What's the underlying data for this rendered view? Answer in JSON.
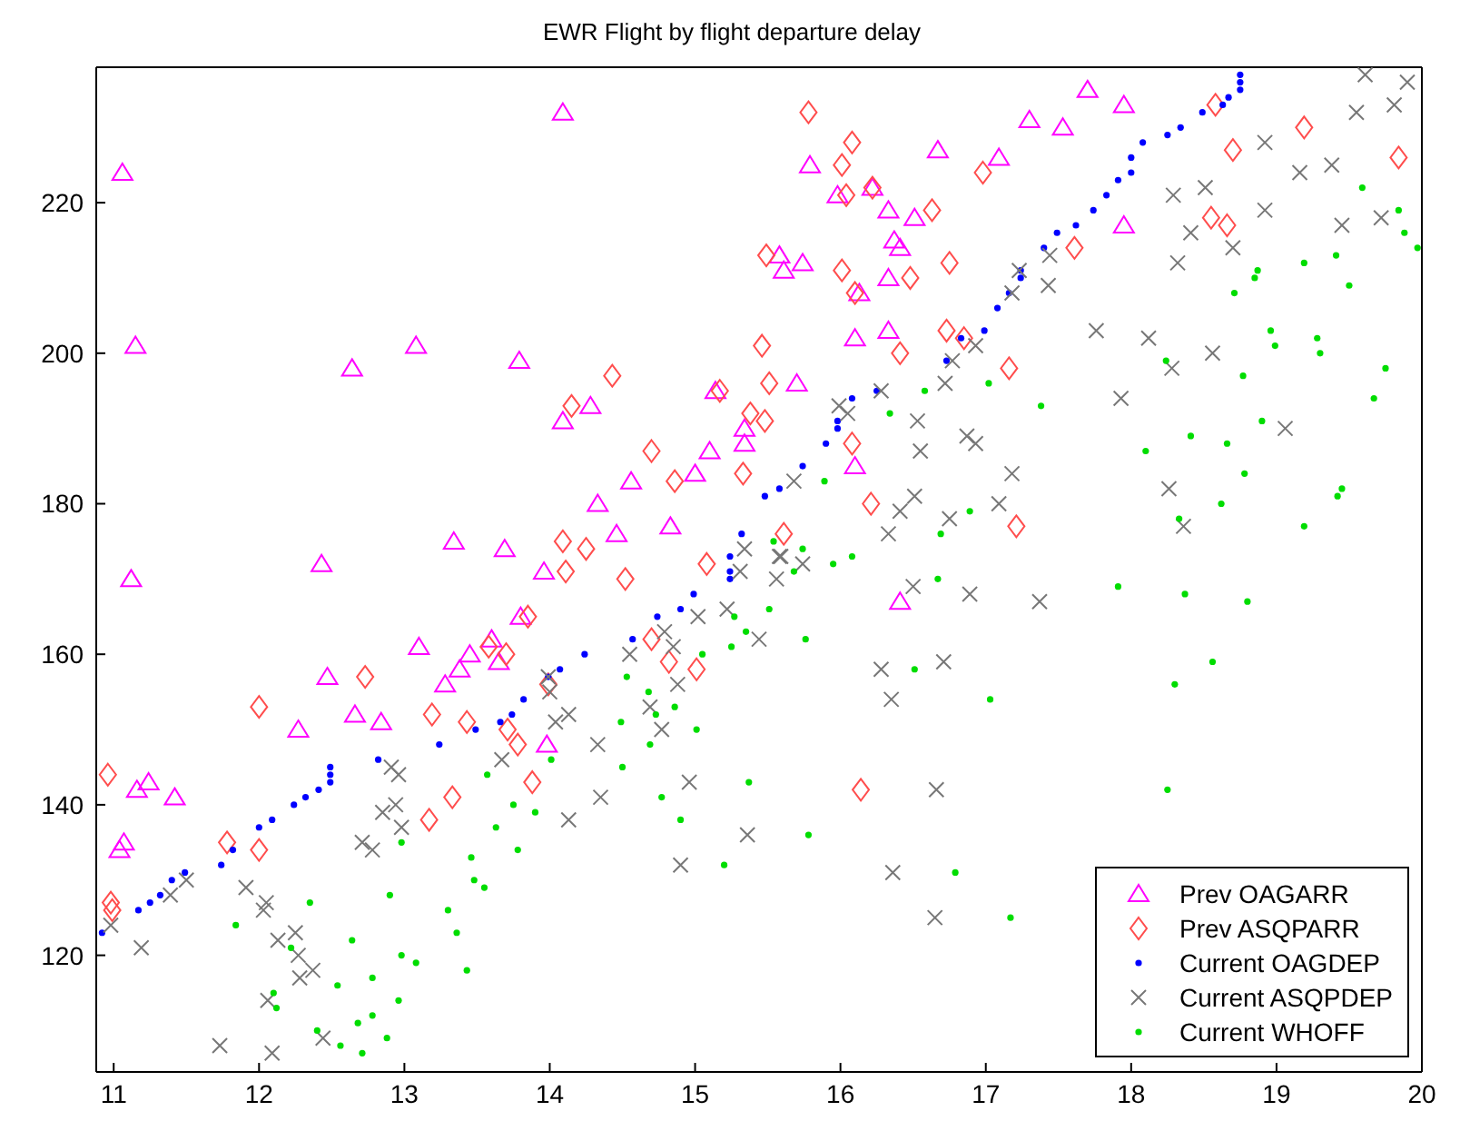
{
  "chart_data": {
    "type": "scatter",
    "title": "EWR Flight by flight departure delay",
    "xlim": [
      10.88,
      20
    ],
    "ylim": [
      104.5,
      238
    ],
    "xticks": [
      11,
      12,
      13,
      14,
      15,
      16,
      17,
      18,
      19,
      20
    ],
    "yticks": [
      120,
      140,
      160,
      180,
      200,
      220
    ],
    "legend": "bottom right",
    "series": [
      {
        "name": "Prev OAGARR",
        "color": "#ff00ff",
        "marker": "triangle",
        "x": [
          11.06,
          11.15,
          11.12,
          11.04,
          11.07,
          11.16,
          11.24,
          11.42,
          12.43,
          12.47,
          12.27,
          12.66,
          12.84,
          13.1,
          13.28,
          13.38,
          13.45,
          13.6,
          13.65,
          13.8,
          13.98,
          14.09,
          12.64,
          13.08,
          13.79,
          14.09,
          14.28,
          15.34,
          15.14,
          15.34,
          15.1,
          15.0,
          14.56,
          14.33,
          14.46,
          14.83,
          13.34,
          13.69,
          13.96,
          17.7,
          17.95,
          17.3,
          17.53,
          16.67,
          17.09,
          15.79,
          15.98,
          16.22,
          16.33,
          16.51,
          16.37,
          16.41,
          17.95,
          15.58,
          15.61,
          15.74,
          16.13,
          16.33,
          16.1,
          16.33,
          15.7,
          16.1,
          16.41
        ],
        "values": [
          224,
          201,
          170,
          134,
          135,
          142,
          143,
          141,
          172,
          157,
          150,
          152,
          151,
          161,
          156,
          158,
          160,
          162,
          159,
          165,
          148,
          232,
          198,
          201,
          199,
          191,
          193,
          190,
          195,
          188,
          187,
          184,
          183,
          180,
          176,
          177,
          175,
          174,
          171,
          235,
          233,
          231,
          230,
          227,
          226,
          225,
          221,
          222,
          219,
          218,
          215,
          214,
          217,
          213,
          211,
          212,
          208,
          210,
          202,
          203,
          196,
          185,
          167
        ]
      },
      {
        "name": "Prev ASQPARR",
        "color": "#ff4d4d",
        "marker": "diamond",
        "x": [
          10.96,
          10.98,
          10.99,
          11.78,
          12.0,
          12.0,
          12.73,
          13.19,
          13.43,
          13.7,
          13.58,
          13.71,
          13.78,
          13.85,
          13.88,
          13.33,
          13.17,
          13.99,
          14.11,
          14.52,
          14.7,
          14.82,
          15.01,
          15.08,
          14.25,
          14.43,
          14.15,
          14.7,
          14.86,
          15.33,
          14.09,
          15.17,
          15.78,
          16.08,
          16.01,
          16.22,
          16.04,
          16.98,
          16.63,
          16.75,
          16.48,
          16.01,
          16.1,
          15.49,
          15.46,
          15.51,
          16.41,
          16.73,
          16.85,
          17.16,
          15.38,
          15.48,
          16.08,
          16.21,
          15.61,
          17.21,
          18.58,
          19.19,
          18.7,
          19.84,
          17.61,
          18.55,
          18.66,
          16.14
        ],
        "values": [
          144,
          127,
          126,
          135,
          134,
          153,
          157,
          152,
          151,
          160,
          161,
          150,
          148,
          165,
          143,
          141,
          138,
          156,
          171,
          170,
          162,
          159,
          158,
          172,
          174,
          197,
          193,
          187,
          183,
          184,
          175,
          195,
          232,
          228,
          225,
          222,
          221,
          224,
          219,
          212,
          210,
          211,
          208,
          213,
          201,
          196,
          200,
          203,
          202,
          198,
          192,
          191,
          188,
          180,
          176,
          177,
          233,
          230,
          227,
          226,
          214,
          218,
          217,
          142
        ]
      },
      {
        "name": "Current OAGDEP",
        "color": "#0000ff",
        "marker": "circle",
        "x": [
          10.92,
          11.17,
          11.25,
          11.32,
          11.4,
          11.49,
          11.74,
          11.82,
          12.0,
          12.09,
          12.24,
          12.32,
          12.41,
          12.49,
          12.49,
          12.49,
          12.82,
          13.24,
          13.49,
          13.66,
          13.74,
          13.82,
          13.99,
          14.07,
          14.24,
          14.57,
          14.74,
          14.9,
          14.99,
          15.24,
          15.24,
          15.24,
          15.32,
          15.48,
          15.58,
          15.74,
          15.9,
          15.98,
          15.98,
          16.08,
          16.25,
          16.73,
          16.83,
          16.99,
          17.08,
          17.16,
          17.24,
          17.24,
          17.4,
          17.49,
          17.62,
          17.74,
          17.83,
          17.91,
          18.0,
          18.0,
          18.08,
          18.25,
          18.34,
          18.49,
          18.63,
          18.67,
          18.75,
          18.75,
          18.75
        ],
        "values": [
          123,
          126,
          127,
          128,
          130,
          131,
          132,
          134,
          137,
          138,
          140,
          141,
          142,
          143,
          144,
          145,
          146,
          148,
          150,
          151,
          152,
          154,
          157,
          158,
          160,
          162,
          165,
          166,
          168,
          170,
          171,
          173,
          176,
          181,
          182,
          185,
          188,
          190,
          191,
          194,
          195,
          199,
          202,
          203,
          206,
          208,
          210,
          211,
          214,
          216,
          217,
          219,
          221,
          223,
          224,
          226,
          228,
          229,
          230,
          232,
          233,
          234,
          235,
          236,
          237
        ]
      },
      {
        "name": "Current ASQPDEP",
        "color": "#777777",
        "marker": "cross",
        "x": [
          10.98,
          11.19,
          11.39,
          11.5,
          11.73,
          11.91,
          12.05,
          12.03,
          12.13,
          12.06,
          12.09,
          12.25,
          12.27,
          12.28,
          12.37,
          12.44,
          12.71,
          12.78,
          12.85,
          12.94,
          12.98,
          12.91,
          12.96,
          13.67,
          14.04,
          14.13,
          13.99,
          14.0,
          14.33,
          14.35,
          14.13,
          14.55,
          14.69,
          14.77,
          14.85,
          14.88,
          14.79,
          15.02,
          14.96,
          14.9,
          15.22,
          15.36,
          15.31,
          15.56,
          15.58,
          15.74,
          16.5,
          16.89,
          17.37,
          15.44,
          16.28,
          16.71,
          16.35,
          16.66,
          16.36,
          16.65,
          19.61,
          19.9,
          19.55,
          19.81,
          18.92,
          19.16,
          19.38,
          18.29,
          18.51,
          18.92,
          19.45,
          19.72,
          18.41,
          18.7,
          18.32,
          17.44,
          17.23,
          17.18,
          17.43,
          17.76,
          18.12,
          18.56,
          16.93,
          16.77,
          16.72,
          18.28,
          16.28,
          17.93,
          15.99,
          16.05,
          16.53,
          19.06,
          16.87,
          16.93,
          16.55,
          15.68,
          17.18,
          18.26,
          16.51,
          16.41,
          17.09,
          16.75,
          16.33,
          18.36,
          15.34,
          15.59
        ],
        "values": [
          124,
          121,
          128,
          130,
          108,
          129,
          127,
          126,
          122,
          114,
          107,
          123,
          120,
          117,
          118,
          109,
          135,
          134,
          139,
          140,
          137,
          145,
          144,
          146,
          151,
          152,
          157,
          155,
          148,
          141,
          138,
          160,
          153,
          150,
          161,
          156,
          163,
          165,
          143,
          132,
          166,
          136,
          171,
          170,
          173,
          172,
          169,
          168,
          167,
          162,
          158,
          159,
          154,
          142,
          131,
          125,
          237,
          236,
          232,
          233,
          228,
          224,
          225,
          221,
          222,
          219,
          217,
          218,
          216,
          214,
          212,
          213,
          211,
          208,
          209,
          203,
          202,
          200,
          201,
          199,
          196,
          198,
          195,
          194,
          193,
          192,
          191,
          190,
          189,
          188,
          187,
          183,
          184,
          182,
          181,
          179,
          180,
          178,
          176,
          177,
          174,
          173
        ]
      },
      {
        "name": "Current WHOFF",
        "color": "#00dd00",
        "marker": "circle",
        "x": [
          11.84,
          12.35,
          12.9,
          13.3,
          13.36,
          12.64,
          12.22,
          12.98,
          13.08,
          13.43,
          12.78,
          12.54,
          12.1,
          12.96,
          12.12,
          12.78,
          12.68,
          12.4,
          12.88,
          12.56,
          12.71,
          12.98,
          13.46,
          13.78,
          13.63,
          13.75,
          13.9,
          13.48,
          13.55,
          13.57,
          14.01,
          14.53,
          14.49,
          14.68,
          14.69,
          14.73,
          14.86,
          15.01,
          14.5,
          14.77,
          14.9,
          15.2,
          15.05,
          15.25,
          15.27,
          15.37,
          16.08,
          15.95,
          15.68,
          16.67,
          17.91,
          18.37,
          18.8,
          15.51,
          15.35,
          15.76,
          16.51,
          18.56,
          18.3,
          17.03,
          18.25,
          15.78,
          16.79,
          17.17,
          19.59,
          19.84,
          19.88,
          19.97,
          19.19,
          19.41,
          18.87,
          18.85,
          19.5,
          18.71,
          18.96,
          19.28,
          18.99,
          19.3,
          19.75,
          18.24,
          18.77,
          17.02,
          16.58,
          19.67,
          17.38,
          16.34,
          18.9,
          18.41,
          18.66,
          18.1,
          15.89,
          18.78,
          19.45,
          19.42,
          18.62,
          16.89,
          18.33,
          19.19,
          16.69,
          15.54,
          15.74
        ],
        "values": [
          124,
          127,
          128,
          126,
          123,
          122,
          121,
          120,
          119,
          118,
          117,
          116,
          115,
          114,
          113,
          112,
          111,
          110,
          109,
          108,
          107,
          135,
          133,
          134,
          137,
          140,
          139,
          130,
          129,
          144,
          146,
          157,
          151,
          155,
          148,
          152,
          153,
          150,
          145,
          141,
          138,
          132,
          160,
          161,
          165,
          143,
          173,
          172,
          171,
          170,
          169,
          168,
          167,
          166,
          163,
          162,
          158,
          159,
          156,
          154,
          142,
          136,
          131,
          125,
          222,
          219,
          216,
          214,
          212,
          213,
          211,
          210,
          209,
          208,
          203,
          202,
          201,
          200,
          198,
          199,
          197,
          196,
          195,
          194,
          193,
          192,
          191,
          189,
          188,
          187,
          183,
          184,
          182,
          181,
          180,
          179,
          178,
          177,
          176,
          175,
          174
        ]
      }
    ]
  }
}
